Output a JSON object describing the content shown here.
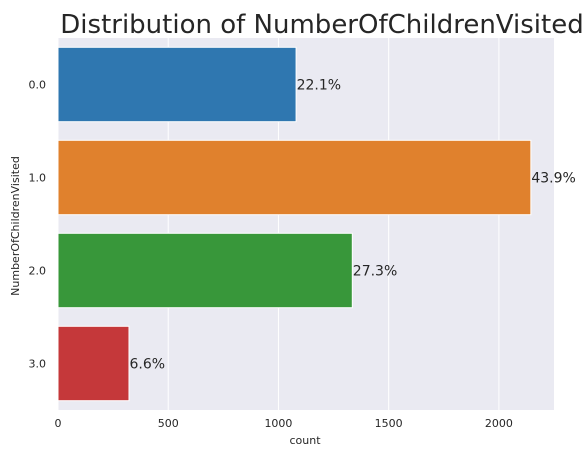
{
  "chart_data": {
    "type": "bar",
    "orientation": "horizontal",
    "title": "Distribution of NumberOfChildrenVisited",
    "xlabel": "count",
    "ylabel": "NumberOfChildrenVisited",
    "categories": [
      "0.0",
      "1.0",
      "2.0",
      "3.0"
    ],
    "values": [
      1080,
      2145,
      1335,
      322
    ],
    "bar_labels": [
      "22.1%",
      "43.9%",
      "27.3%",
      "6.6%"
    ],
    "colors": [
      "#2f77b0",
      "#e0812d",
      "#38973a",
      "#c5383a"
    ],
    "xlim": [
      0,
      2250
    ],
    "xticks": [
      0,
      500,
      1000,
      1500,
      2000
    ],
    "xtick_labels": [
      "0",
      "500",
      "1000",
      "1500",
      "2000"
    ],
    "grid": true,
    "background": "#eaeaf2"
  }
}
